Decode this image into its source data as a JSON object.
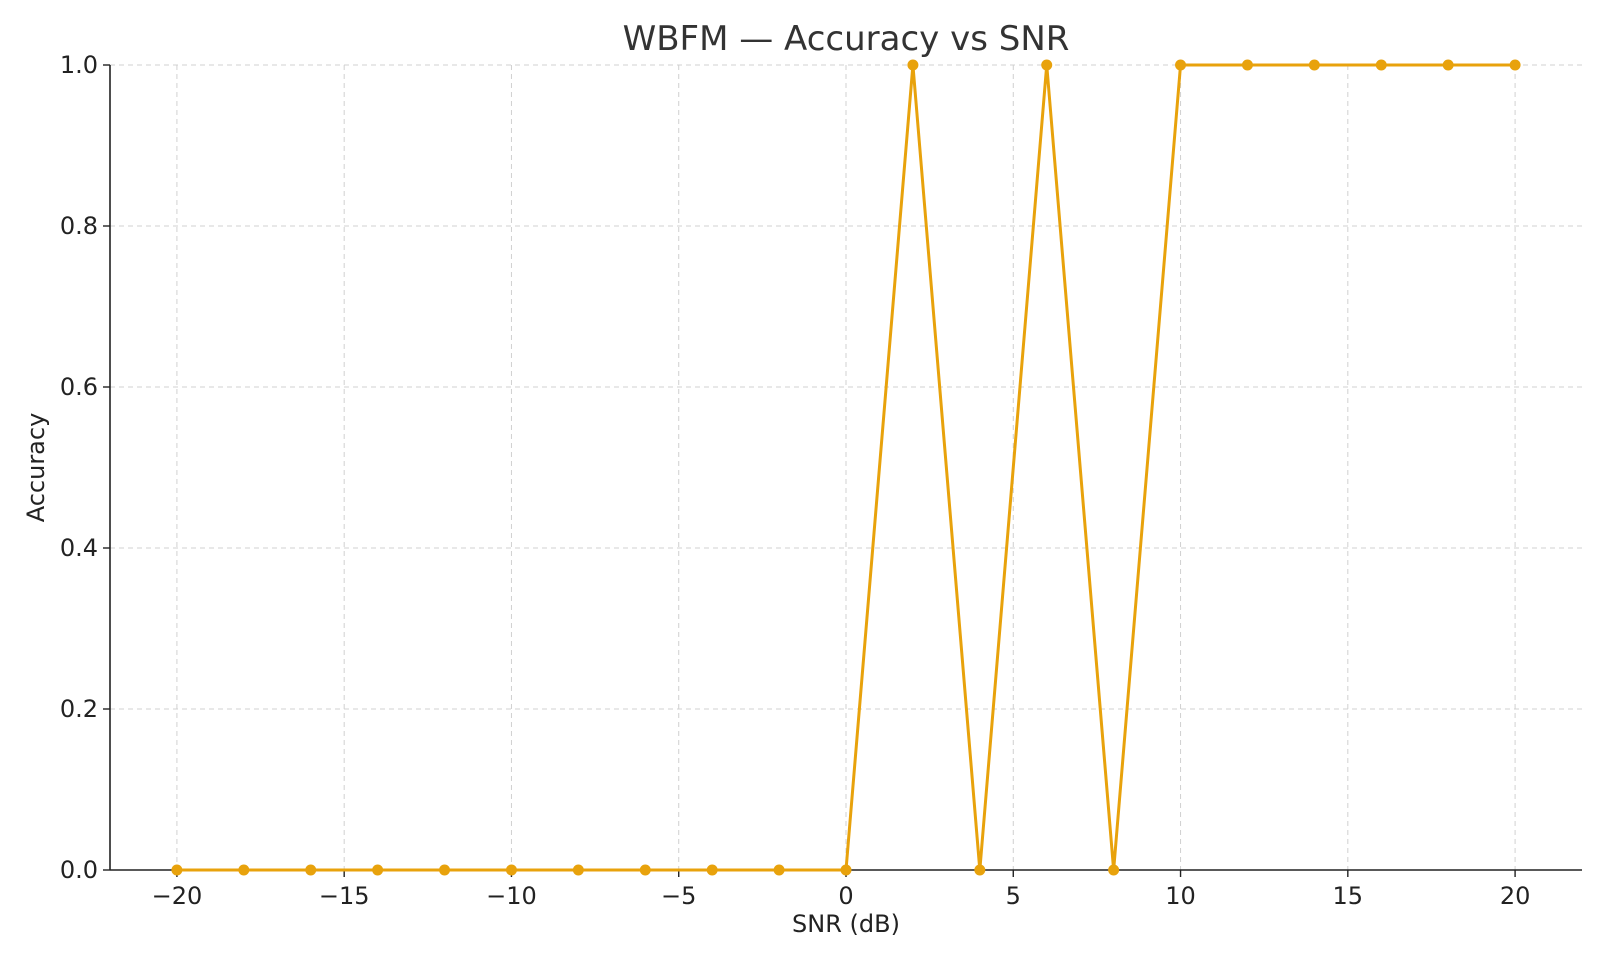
{
  "chart_data": {
    "type": "line",
    "title": "WBFM — Accuracy vs SNR",
    "xlabel": "SNR (dB)",
    "ylabel": "Accuracy",
    "xlim": [
      -22,
      22
    ],
    "ylim": [
      0,
      1
    ],
    "x_ticks": [
      -20,
      -15,
      -10,
      -5,
      0,
      5,
      10,
      15,
      20
    ],
    "x_tick_labels": [
      "−20",
      "−15",
      "−10",
      "−5",
      "0",
      "5",
      "10",
      "15",
      "20"
    ],
    "y_ticks": [
      0,
      0.2,
      0.4,
      0.6,
      0.8,
      1.0
    ],
    "y_tick_labels": [
      "0.0",
      "0.2",
      "0.4",
      "0.6",
      "0.8",
      "1.0"
    ],
    "grid": true,
    "series": [
      {
        "color": "#E8A20C",
        "marker": "circle",
        "x": [
          -20,
          -18,
          -16,
          -14,
          -12,
          -10,
          -8,
          -6,
          -4,
          -2,
          0,
          2,
          4,
          6,
          8,
          10,
          12,
          14,
          16,
          18,
          20
        ],
        "y": [
          0,
          0,
          0,
          0,
          0,
          0,
          0,
          0,
          0,
          0,
          0,
          1,
          0,
          1,
          0,
          1,
          1,
          1,
          1,
          1,
          1
        ]
      }
    ]
  }
}
